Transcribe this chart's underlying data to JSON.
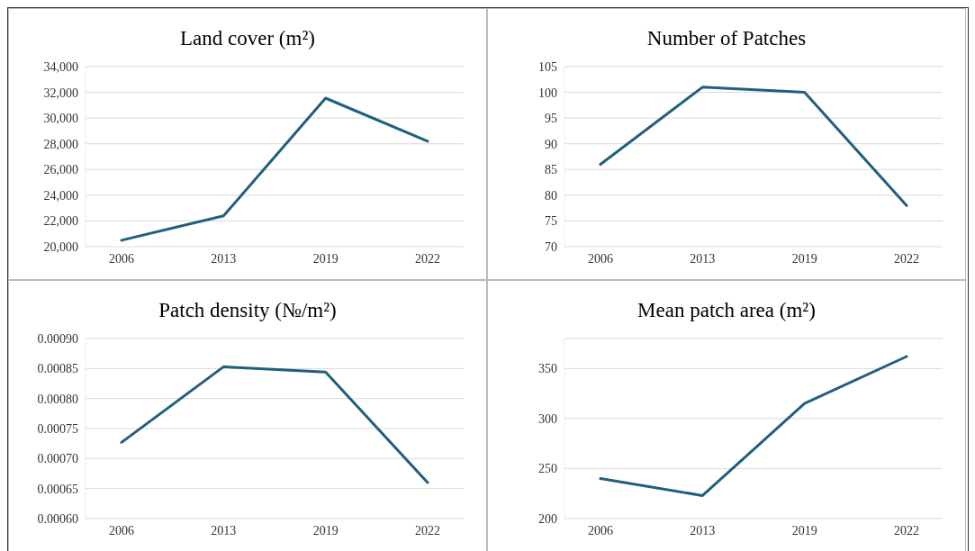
{
  "chart_data": [
    {
      "type": "line",
      "title": "Land cover (m²)",
      "categories": [
        "2006",
        "2013",
        "2019",
        "2022"
      ],
      "values": [
        20500,
        22400,
        31550,
        28200
      ],
      "color": "#1f5f7f",
      "ylim": [
        20000,
        34000
      ],
      "yticks": [
        {
          "value": 20000,
          "label": "20,000"
        },
        {
          "value": 22000,
          "label": "22,000"
        },
        {
          "value": 24000,
          "label": "24,000"
        },
        {
          "value": 26000,
          "label": "26,000"
        },
        {
          "value": 28000,
          "label": "28,000"
        },
        {
          "value": 30000,
          "label": "30,000"
        },
        {
          "value": 32000,
          "label": "32,000"
        },
        {
          "value": 34000,
          "label": "34,000"
        }
      ],
      "grid": "y"
    },
    {
      "type": "line",
      "title": "Number of Patches",
      "categories": [
        "2006",
        "2013",
        "2019",
        "2022"
      ],
      "values": [
        86,
        101,
        100,
        78
      ],
      "color": "#1f5f7f",
      "ylim": [
        70,
        105
      ],
      "yticks": [
        70,
        75,
        80,
        85,
        90,
        95,
        100,
        105
      ],
      "grid": "y"
    },
    {
      "type": "line",
      "title": "Patch density (№/m²)",
      "categories": [
        "2006",
        "2013",
        "2019",
        "2022"
      ],
      "values": [
        0.000727,
        0.000853,
        0.000844,
        0.00066
      ],
      "color": "#1f5f7f",
      "ylim": [
        0.0006,
        0.0009
      ],
      "yticks": [
        {
          "value": 0.0006,
          "label": "0.00060"
        },
        {
          "value": 0.00065,
          "label": "0.00065"
        },
        {
          "value": 0.0007,
          "label": "0.00070"
        },
        {
          "value": 0.00075,
          "label": "0.00075"
        },
        {
          "value": 0.0008,
          "label": "0.00080"
        },
        {
          "value": 0.00085,
          "label": "0.00085"
        },
        {
          "value": 0.0009,
          "label": "0.00090"
        }
      ],
      "grid": "y"
    },
    {
      "type": "line",
      "title": "Mean patch area (m²)",
      "categories": [
        "2006",
        "2013",
        "2019",
        "2022"
      ],
      "values": [
        240,
        223,
        315,
        362
      ],
      "color": "#1f5f7f",
      "ylim": [
        200,
        380
      ],
      "yticks": [
        200,
        250,
        300,
        350
      ],
      "grid": "y"
    }
  ]
}
